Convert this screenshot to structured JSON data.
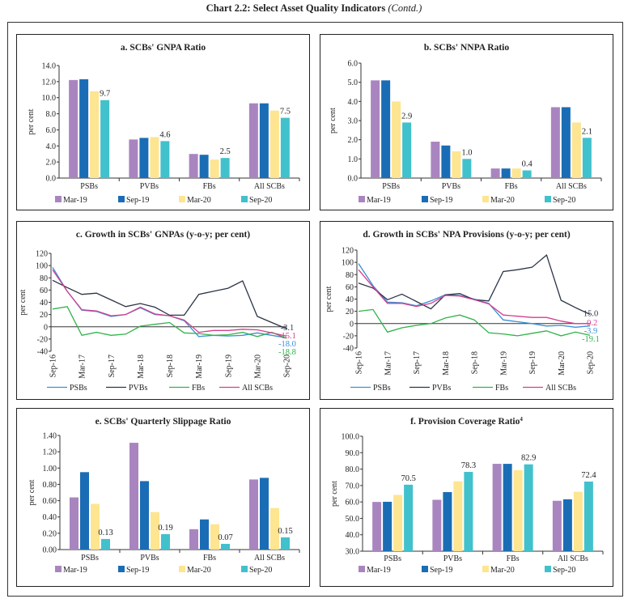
{
  "page_title": "Chart 2.2: Select Asset Quality Indicators",
  "page_title_suffix": "(Contd.)",
  "chart_data": [
    {
      "id": "a",
      "type": "bar",
      "title": "a. SCBs' GNPA Ratio",
      "ylabel": "per cent",
      "categories": [
        "PSBs",
        "PVBs",
        "FBs",
        "All SCBs"
      ],
      "ylim": [
        0,
        14
      ],
      "yticks": [
        "0.0",
        "2.0",
        "4.0",
        "6.0",
        "8.0",
        "10.0",
        "12.0",
        "14.0"
      ],
      "series": [
        {
          "name": "Mar-19",
          "color": "#a985c0",
          "values": [
            12.2,
            4.8,
            3.0,
            9.3
          ]
        },
        {
          "name": "Sep-19",
          "color": "#1a6db5",
          "values": [
            12.3,
            5.0,
            2.9,
            9.3
          ]
        },
        {
          "name": "Mar-20",
          "color": "#fde591",
          "values": [
            10.8,
            5.1,
            2.3,
            8.4
          ]
        },
        {
          "name": "Sep-20",
          "color": "#41c1cc",
          "values": [
            9.7,
            4.6,
            2.5,
            7.5
          ],
          "labels": [
            "9.7",
            "4.6",
            "2.5",
            "7.5"
          ]
        }
      ]
    },
    {
      "id": "b",
      "type": "bar",
      "title": "b. SCBs' NNPA Ratio",
      "ylabel": "per cent",
      "categories": [
        "PSBs",
        "PVBs",
        "FBs",
        "All SCBs"
      ],
      "ylim": [
        0,
        6
      ],
      "yticks": [
        "0.0",
        "1.0",
        "2.0",
        "3.0",
        "4.0",
        "5.0",
        "6.0"
      ],
      "series": [
        {
          "name": "Mar-19",
          "color": "#a985c0",
          "values": [
            5.1,
            1.9,
            0.5,
            3.7
          ]
        },
        {
          "name": "Sep-19",
          "color": "#1a6db5",
          "values": [
            5.1,
            1.7,
            0.5,
            3.7
          ]
        },
        {
          "name": "Mar-20",
          "color": "#fde591",
          "values": [
            4.0,
            1.4,
            0.5,
            2.9
          ]
        },
        {
          "name": "Sep-20",
          "color": "#41c1cc",
          "values": [
            2.9,
            1.0,
            0.4,
            2.1
          ],
          "labels": [
            "2.9",
            "1.0",
            "0.4",
            "2.1"
          ]
        }
      ]
    },
    {
      "id": "c",
      "type": "line",
      "title": "c. Growth in SCBs' GNPAs (y-o-y; per cent)",
      "ylabel": "per cent",
      "x": [
        "Sep-16",
        "Dec-16",
        "Mar-17",
        "Jun-17",
        "Sep-17",
        "Dec-17",
        "Mar-18",
        "Jun-18",
        "Sep-18",
        "Dec-18",
        "Mar-19",
        "Jun-19",
        "Sep-19",
        "Dec-19",
        "Mar-20",
        "Jun-20",
        "Sep-20"
      ],
      "xticks": [
        "Sep-16",
        "Mar-17",
        "Sep-17",
        "Mar-18",
        "Sep-18",
        "Mar-19",
        "Sep-19",
        "Mar-20",
        "Sep-20"
      ],
      "ylim": [
        -40,
        120
      ],
      "yticks": [
        "-40",
        "-20",
        "0",
        "20",
        "40",
        "60",
        "80",
        "100",
        "120"
      ],
      "series": [
        {
          "name": "PSBs",
          "color": "#3a8fd6",
          "values": [
            97,
            58,
            27,
            25,
            17,
            20,
            31,
            20,
            18,
            10,
            -16,
            -14,
            -15,
            -14,
            -10,
            -14,
            -18.0
          ],
          "end_label": "-18.0"
        },
        {
          "name": "PVBs",
          "color": "#2b3447",
          "values": [
            76,
            64,
            53,
            55,
            44,
            33,
            38,
            32,
            19,
            19,
            53,
            58,
            63,
            75,
            17,
            7,
            -3.1
          ],
          "end_label": "-3.1"
        },
        {
          "name": "FBs",
          "color": "#2fb34a",
          "values": [
            29,
            33,
            -14,
            -9,
            -14,
            -12,
            1,
            4,
            7,
            -10,
            -11,
            -14,
            -13,
            -9,
            -16,
            -9,
            -18.8
          ],
          "end_label": "-18.8"
        },
        {
          "name": "All SCBs",
          "color": "#d23f8f",
          "values": [
            93,
            58,
            28,
            26,
            18,
            20,
            32,
            21,
            18,
            11,
            -9,
            -6,
            -6,
            -4,
            -5,
            -10,
            -15.1
          ],
          "end_label": "-15.1"
        }
      ]
    },
    {
      "id": "d",
      "type": "line",
      "title": "d. Growth in SCBs' NPA Provisions (y-o-y; per cent)",
      "ylabel": "per cent",
      "x": [
        "Sep-16",
        "Dec-16",
        "Mar-17",
        "Jun-17",
        "Sep-17",
        "Dec-17",
        "Mar-18",
        "Jun-18",
        "Sep-18",
        "Dec-18",
        "Mar-19",
        "Jun-19",
        "Sep-19",
        "Dec-19",
        "Mar-20",
        "Jun-20",
        "Sep-20"
      ],
      "xticks": [
        "Sep-16",
        "Mar-17",
        "Sep-17",
        "Mar-18",
        "Sep-18",
        "Mar-19",
        "Sep-19",
        "Mar-20",
        "Sep-20"
      ],
      "ylim": [
        -40,
        120
      ],
      "yticks": [
        "-40",
        "-20",
        "0",
        "20",
        "40",
        "60",
        "80",
        "100",
        "120"
      ],
      "series": [
        {
          "name": "PSBs",
          "color": "#3a8fd6",
          "values": [
            98,
            62,
            35,
            34,
            29,
            37,
            47,
            46,
            40,
            33,
            6,
            3,
            0,
            -4,
            -3,
            -6,
            -3.9
          ],
          "end_label": "-3.9"
        },
        {
          "name": "PVBs",
          "color": "#2b3447",
          "values": [
            66,
            58,
            39,
            48,
            36,
            24,
            47,
            49,
            39,
            37,
            85,
            88,
            92,
            112,
            38,
            26,
            15.0
          ],
          "end_label": "15.0"
        },
        {
          "name": "FBs",
          "color": "#2fb34a",
          "values": [
            20,
            23,
            -14,
            -7,
            -3,
            0,
            9,
            14,
            6,
            -15,
            -17,
            -20,
            -16,
            -12,
            -20,
            -14,
            -19.1
          ],
          "end_label": "-19.1"
        },
        {
          "name": "All SCBs",
          "color": "#d23f8f",
          "values": [
            88,
            60,
            33,
            33,
            28,
            33,
            46,
            45,
            39,
            32,
            14,
            12,
            10,
            10,
            4,
            0,
            -0.2
          ],
          "end_label": "-0.2"
        }
      ]
    },
    {
      "id": "e",
      "type": "bar",
      "title": "e. SCBs' Quarterly Slippage Ratio",
      "ylabel": "per cent",
      "categories": [
        "PSBs",
        "PVBs",
        "FBs",
        "All SCBs"
      ],
      "ylim": [
        0,
        1.4
      ],
      "yticks": [
        "0.00",
        "0.20",
        "0.40",
        "0.60",
        "0.80",
        "1.00",
        "1.20",
        "1.40"
      ],
      "series": [
        {
          "name": "Mar-19",
          "color": "#a985c0",
          "values": [
            0.64,
            1.31,
            0.25,
            0.86
          ]
        },
        {
          "name": "Sep-19",
          "color": "#1a6db5",
          "values": [
            0.95,
            0.84,
            0.37,
            0.88
          ]
        },
        {
          "name": "Mar-20",
          "color": "#fde591",
          "values": [
            0.56,
            0.46,
            0.31,
            0.51
          ]
        },
        {
          "name": "Sep-20",
          "color": "#41c1cc",
          "values": [
            0.13,
            0.19,
            0.07,
            0.15
          ],
          "labels": [
            "0.13",
            "0.19",
            "0.07",
            "0.15"
          ]
        }
      ]
    },
    {
      "id": "f",
      "type": "bar",
      "title": "f. Provision Coverage Ratio",
      "title_sup": "4",
      "ylabel": "per cent",
      "categories": [
        "PSBs",
        "PVBs",
        "FBs",
        "All SCBs"
      ],
      "ylim": [
        30,
        100
      ],
      "yticks": [
        "30.0",
        "40.0",
        "50.0",
        "60.0",
        "70.0",
        "80.0",
        "90.0",
        "100.0"
      ],
      "series": [
        {
          "name": "Mar-19",
          "color": "#a985c0",
          "values": [
            60.0,
            61.3,
            83.2,
            60.7
          ]
        },
        {
          "name": "Sep-19",
          "color": "#1a6db5",
          "values": [
            60.1,
            66.0,
            83.2,
            61.6
          ]
        },
        {
          "name": "Mar-20",
          "color": "#fde591",
          "values": [
            64.3,
            72.6,
            79.4,
            66.2
          ]
        },
        {
          "name": "Sep-20",
          "color": "#41c1cc",
          "values": [
            70.5,
            78.3,
            82.9,
            72.4
          ],
          "labels": [
            "70.5",
            "78.3",
            "82.9",
            "72.4"
          ]
        }
      ]
    }
  ]
}
